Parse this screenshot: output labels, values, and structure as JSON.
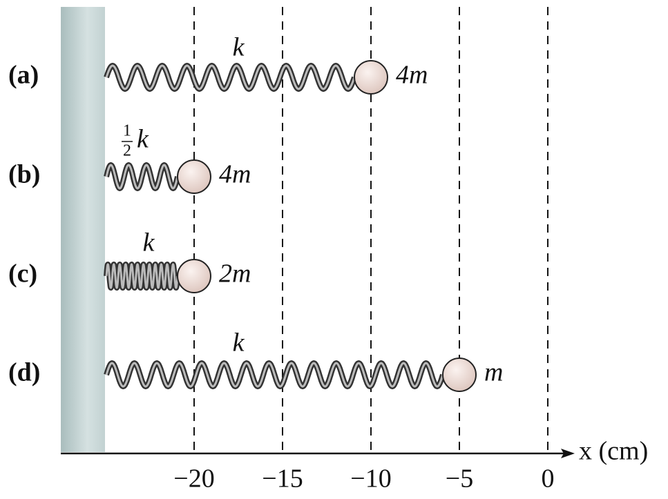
{
  "axis": {
    "label": "x (cm)",
    "ticks": [
      {
        "value": -20,
        "label": "−20"
      },
      {
        "value": -15,
        "label": "−15"
      },
      {
        "value": -10,
        "label": "−10"
      },
      {
        "value": -5,
        "label": "−5"
      },
      {
        "value": 0,
        "label": "0"
      }
    ]
  },
  "systems": [
    {
      "label": "(a)",
      "spring": "k",
      "mass": "4m",
      "x": -10
    },
    {
      "label": "(b)",
      "spring": {
        "numerator": "1",
        "denominator": "2",
        "symbol": "k"
      },
      "mass": "4m",
      "x": -20
    },
    {
      "label": "(c)",
      "spring": "k",
      "mass": "2m",
      "x": -20
    },
    {
      "label": "(d)",
      "spring": "k",
      "mass": "m",
      "x": -5
    }
  ]
}
